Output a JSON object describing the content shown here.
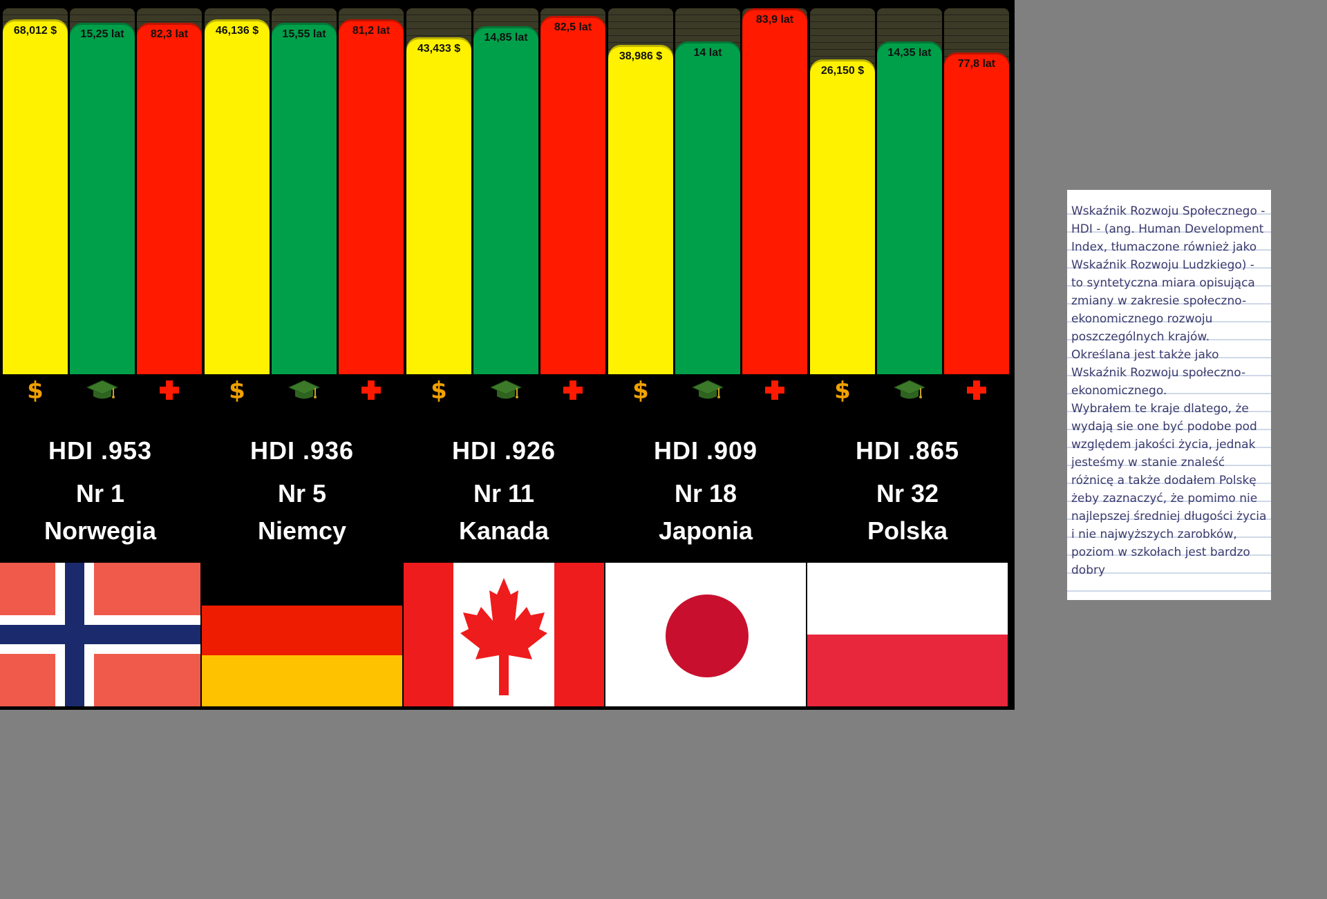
{
  "chart_data": {
    "type": "bar",
    "categories": [
      "Norwegia",
      "Niemcy",
      "Kanada",
      "Japonia",
      "Polska"
    ],
    "series": [
      {
        "metric": "income",
        "icon": "dollar-icon",
        "color": "#fff200",
        "values": [
          68012,
          46136,
          43433,
          38986,
          26150
        ],
        "labels": [
          "68,012 $",
          "46,136 $",
          "43,433 $",
          "38,986 $",
          "26,150 $"
        ]
      },
      {
        "metric": "education",
        "icon": "graduation-cap-icon",
        "color": "#00a04a",
        "values": [
          15.25,
          15.55,
          14.85,
          14.0,
          14.35
        ],
        "labels": [
          "15,25 lat",
          "15,55 lat",
          "14,85 lat",
          "14 lat",
          "14,35 lat"
        ]
      },
      {
        "metric": "life",
        "icon": "red-cross-icon",
        "color": "#ff1a00",
        "values": [
          82.3,
          81.2,
          82.5,
          83.9,
          77.8
        ],
        "labels": [
          "82,3 lat",
          "81,2 lat",
          "82,5 lat",
          "83,9 lat",
          "77,8 lat"
        ]
      }
    ],
    "bar_fill_fraction": [
      [
        0.97,
        0.96,
        0.96
      ],
      [
        0.97,
        0.96,
        0.97
      ],
      [
        0.92,
        0.95,
        0.98
      ],
      [
        0.9,
        0.91,
        1.0
      ],
      [
        0.86,
        0.91,
        0.88
      ]
    ]
  },
  "countries": [
    {
      "hdi": "HDI .953",
      "rank": "Nr 1",
      "name": "Norwegia",
      "flag": "norway"
    },
    {
      "hdi": "HDI .936",
      "rank": "Nr  5",
      "name": "Niemcy",
      "flag": "germany"
    },
    {
      "hdi": "HDI .926",
      "rank": "Nr 11",
      "name": "Kanada",
      "flag": "canada"
    },
    {
      "hdi": "HDI .909",
      "rank": "Nr 18",
      "name": "Japonia",
      "flag": "japan"
    },
    {
      "hdi": "HDI .865",
      "rank": "Nr 32",
      "name": "Polska",
      "flag": "poland"
    }
  ],
  "colors": {
    "income": "#fff200",
    "education": "#00a04a",
    "life": "#ff1a00",
    "dollar": "#f0a000",
    "cross": "#ff1a00"
  },
  "note": {
    "text": "Wskaźnik Rozwoju Społecznego - HDI - (ang. Human Development Index, tłumaczone również jako Wskaźnik Rozwoju Ludzkiego) - to syntetyczna miara opisująca zmiany w zakresie społeczno-ekonomicznego rozwoju poszczególnych krajów. Określana jest także jako Wskaźnik Rozwoju społeczno-ekonomicznego.\nWybrałem te kraje dlatego, że wydają sie one być podobe pod względem jakości życia, jednak jesteśmy w stanie znaleść różnicę a także dodałem Polskę żeby zaznaczyć, że pomimo nie najlepszej średniej długości życia i nie najwyższych zarobków, poziom w szkołach jest bardzo dobry"
  }
}
